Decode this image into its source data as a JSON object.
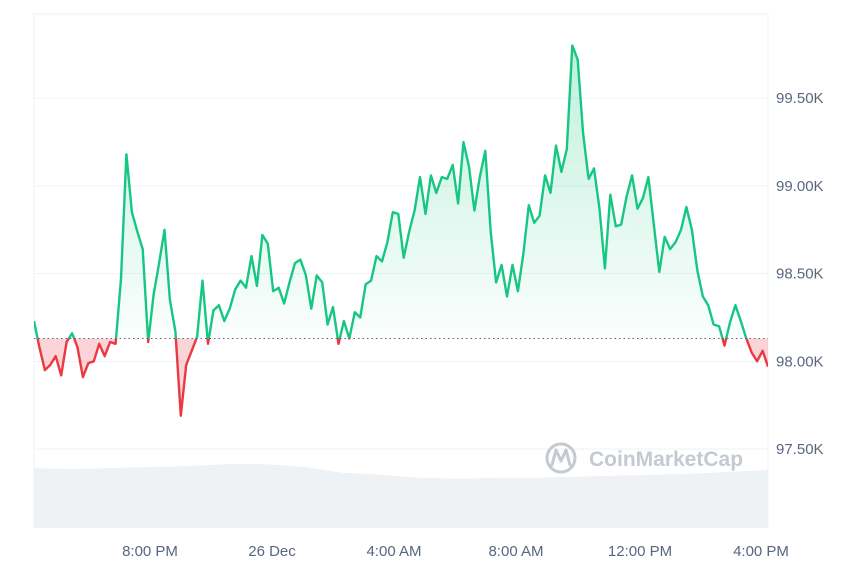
{
  "chart_data": {
    "type": "area",
    "baseline": 98130,
    "ylim": [
      97050,
      99980
    ],
    "y_ticks": [
      {
        "value": 97500,
        "label": "97.50K"
      },
      {
        "value": 98000,
        "label": "98.00K"
      },
      {
        "value": 98500,
        "label": "98.50K"
      },
      {
        "value": 99000,
        "label": "99.00K"
      },
      {
        "value": 99500,
        "label": "99.50K"
      }
    ],
    "x_ticks": [
      "8:00 PM",
      "26 Dec",
      "4:00 AM",
      "8:00 AM",
      "12:00 PM",
      "4:00 PM"
    ],
    "x_hours": [
      0,
      3.5,
      2,
      4,
      6,
      8,
      10,
      12,
      14,
      16,
      18,
      20,
      22,
      24
    ],
    "prices": [
      98230,
      98080,
      97950,
      97980,
      98030,
      97920,
      98110,
      98160,
      98080,
      97910,
      97990,
      98000,
      98100,
      98030,
      98110,
      98100,
      98470,
      99180,
      98850,
      98740,
      98640,
      98110,
      98380,
      98560,
      98750,
      98350,
      98170,
      97690,
      97980,
      98060,
      98140,
      98460,
      98100,
      98290,
      98320,
      98230,
      98300,
      98410,
      98460,
      98420,
      98600,
      98430,
      98720,
      98670,
      98400,
      98420,
      98330,
      98450,
      98560,
      98580,
      98490,
      98300,
      98490,
      98450,
      98210,
      98310,
      98100,
      98230,
      98130,
      98280,
      98250,
      98440,
      98460,
      98600,
      98570,
      98680,
      98850,
      98840,
      98590,
      98740,
      98860,
      99050,
      98840,
      99060,
      98960,
      99050,
      99040,
      99120,
      98900,
      99250,
      99110,
      98860,
      99050,
      99200,
      98740,
      98450,
      98550,
      98370,
      98550,
      98400,
      98610,
      98890,
      98790,
      98830,
      99060,
      98960,
      99230,
      99080,
      99210,
      99800,
      99720,
      99300,
      99040,
      99100,
      98870,
      98530,
      98950,
      98770,
      98780,
      98940,
      99060,
      98870,
      98930,
      99050,
      98780,
      98510,
      98710,
      98640,
      98680,
      98750,
      98880,
      98750,
      98520,
      98370,
      98320,
      98210,
      98200,
      98090,
      98220,
      98320,
      98230,
      98130,
      98050,
      98000,
      98060,
      97970
    ],
    "colors": {
      "up_line": "#16c784",
      "down_line": "#ea3943",
      "up_fill_top": "#16c784",
      "down_fill": "#ea3943",
      "grid": "#eff2f5",
      "baseline": "#58667e",
      "volume": "#eff2f5",
      "watermark": "#c4c9d2"
    },
    "volume_profile": [
      0.62,
      0.61,
      0.62,
      0.63,
      0.64,
      0.66,
      0.66,
      0.63,
      0.57,
      0.55,
      0.52,
      0.51,
      0.52,
      0.52,
      0.53,
      0.54,
      0.55,
      0.56,
      0.58,
      0.6
    ],
    "grid": true
  },
  "watermark": {
    "text": "CoinMarketCap",
    "icon": "coinmarketcap-logo-icon"
  }
}
